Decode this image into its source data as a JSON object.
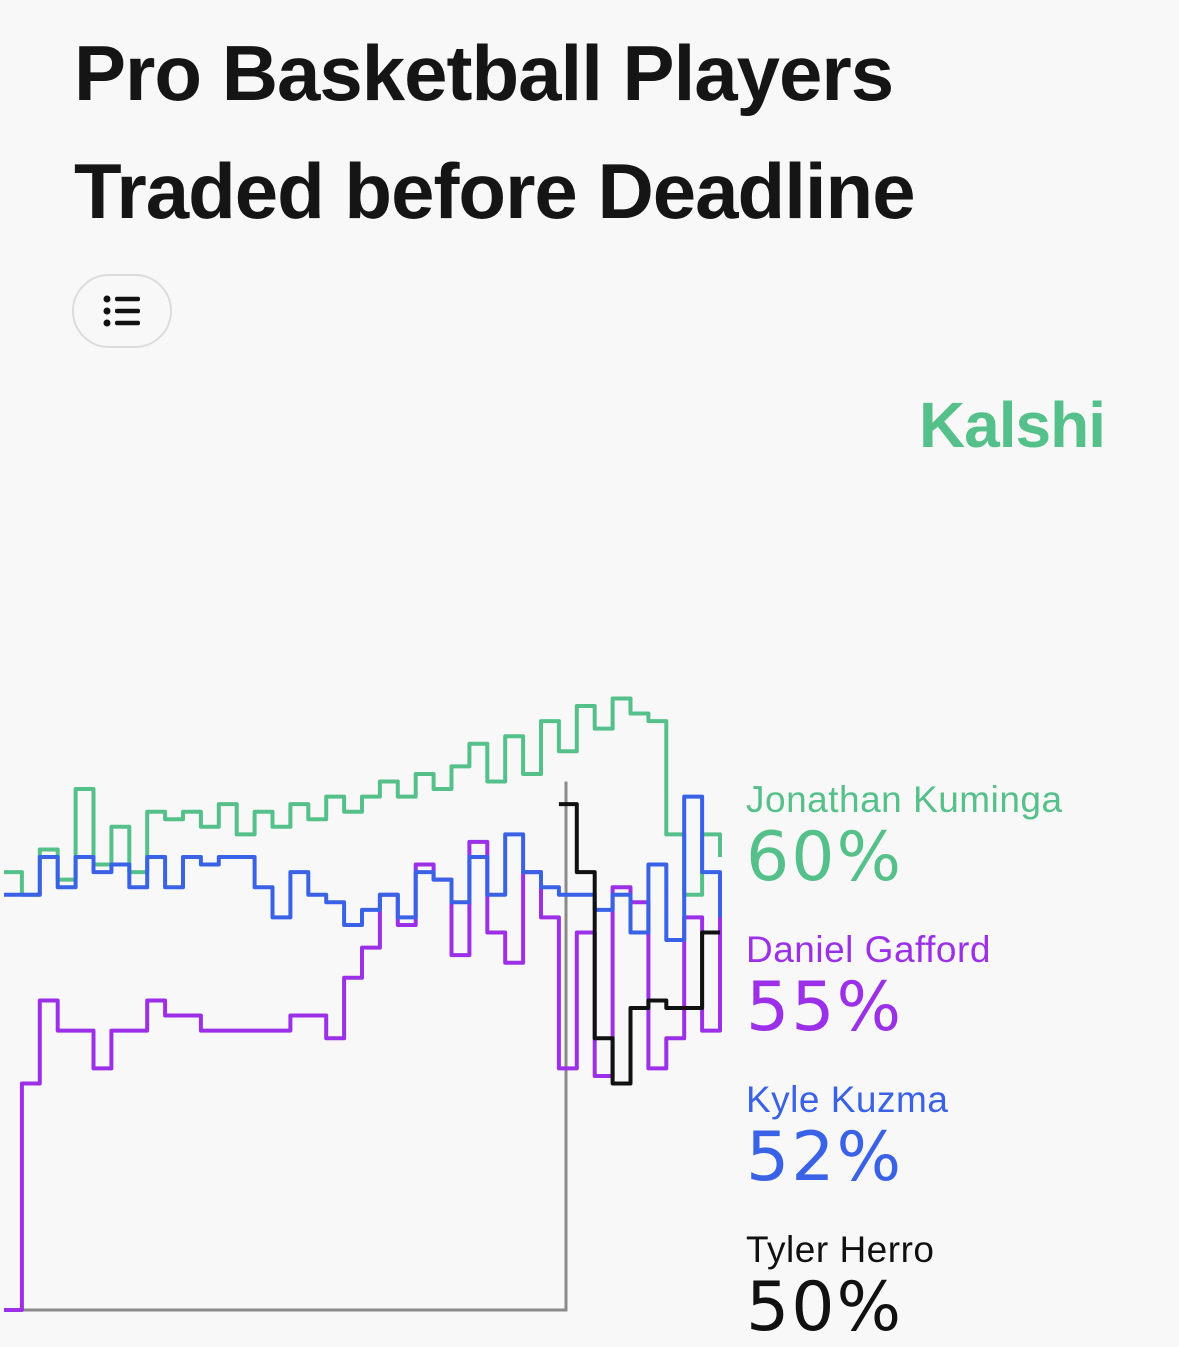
{
  "title": "Pro Basketball Players Traded before Deadline",
  "brand": {
    "name": "Kalshi",
    "color": "#55c08a"
  },
  "menu": {
    "icon": "list-icon"
  },
  "chart_data": {
    "type": "line",
    "title": "Pro Basketball Players Traded before Deadline",
    "xlabel": "",
    "ylabel": "",
    "x": [
      0,
      1,
      2,
      3,
      4,
      5,
      6,
      7,
      8,
      9,
      10,
      11,
      12,
      13,
      14,
      15,
      16,
      17,
      18,
      19,
      20,
      21,
      22,
      23,
      24,
      25,
      26,
      27,
      28,
      29,
      30,
      31,
      32,
      33,
      34,
      35,
      36,
      37,
      38,
      39,
      40
    ],
    "ylim": [
      0,
      100
    ],
    "grid": false,
    "legend_position": "right",
    "series": [
      {
        "name": "Jonathan Kuminga",
        "color": "#55c08a",
        "label": "60%",
        "x": [
          0,
          1,
          2,
          3,
          4,
          5,
          6,
          7,
          8,
          9,
          10,
          11,
          12,
          13,
          14,
          15,
          16,
          17,
          18,
          19,
          20,
          21,
          22,
          23,
          24,
          25,
          26,
          27,
          28,
          29,
          30,
          31,
          32,
          33,
          34,
          35,
          36,
          37,
          38,
          39,
          40
        ],
        "values": [
          58,
          55,
          61,
          57,
          69,
          59,
          64,
          58,
          66,
          65,
          66,
          64,
          67,
          63,
          66,
          64,
          67,
          65,
          68,
          66,
          68,
          70,
          68,
          71,
          69,
          72,
          75,
          70,
          76,
          71,
          78,
          74,
          80,
          77,
          81,
          79,
          78,
          63,
          55,
          63,
          60
        ]
      },
      {
        "name": "Daniel Gafford",
        "color": "#9b30e8",
        "label": "55%",
        "x": [
          0,
          1,
          2,
          3,
          4,
          5,
          6,
          7,
          8,
          9,
          10,
          11,
          12,
          13,
          14,
          15,
          16,
          17,
          18,
          19,
          20,
          21,
          22,
          23,
          24,
          25,
          26,
          27,
          28,
          29,
          30,
          31,
          32,
          33,
          34,
          35,
          36,
          37,
          38,
          39,
          40
        ],
        "values": [
          0,
          30,
          41,
          37,
          37,
          32,
          37,
          37,
          41,
          39,
          39,
          37,
          37,
          37,
          37,
          37,
          39,
          39,
          36,
          44,
          48,
          55,
          51,
          59,
          57,
          47,
          62,
          50,
          46,
          58,
          52,
          32,
          50,
          31,
          56,
          54,
          32,
          36,
          52,
          37,
          55
        ]
      },
      {
        "name": "Kyle Kuzma",
        "color": "#3a62e6",
        "label": "52%",
        "x": [
          0,
          1,
          2,
          3,
          4,
          5,
          6,
          7,
          8,
          9,
          10,
          11,
          12,
          13,
          14,
          15,
          16,
          17,
          18,
          19,
          20,
          21,
          22,
          23,
          24,
          25,
          26,
          27,
          28,
          29,
          30,
          31,
          32,
          33,
          34,
          35,
          36,
          37,
          38,
          39,
          40
        ],
        "values": [
          55,
          55,
          60,
          56,
          60,
          58,
          59,
          56,
          60,
          56,
          60,
          59,
          60,
          60,
          56,
          52,
          58,
          55,
          54,
          51,
          53,
          55,
          52,
          58,
          57,
          54,
          60,
          55,
          63,
          58,
          56,
          55,
          55,
          53,
          55,
          50,
          59,
          49,
          68,
          58,
          52
        ]
      },
      {
        "name": "Tyler Herro",
        "color": "#111111",
        "label": "50%",
        "x": [
          31,
          32,
          33,
          34,
          35,
          36,
          37,
          38,
          39,
          40
        ],
        "values": [
          67,
          58,
          36,
          30,
          40,
          41,
          40,
          40,
          50,
          50
        ]
      }
    ]
  }
}
